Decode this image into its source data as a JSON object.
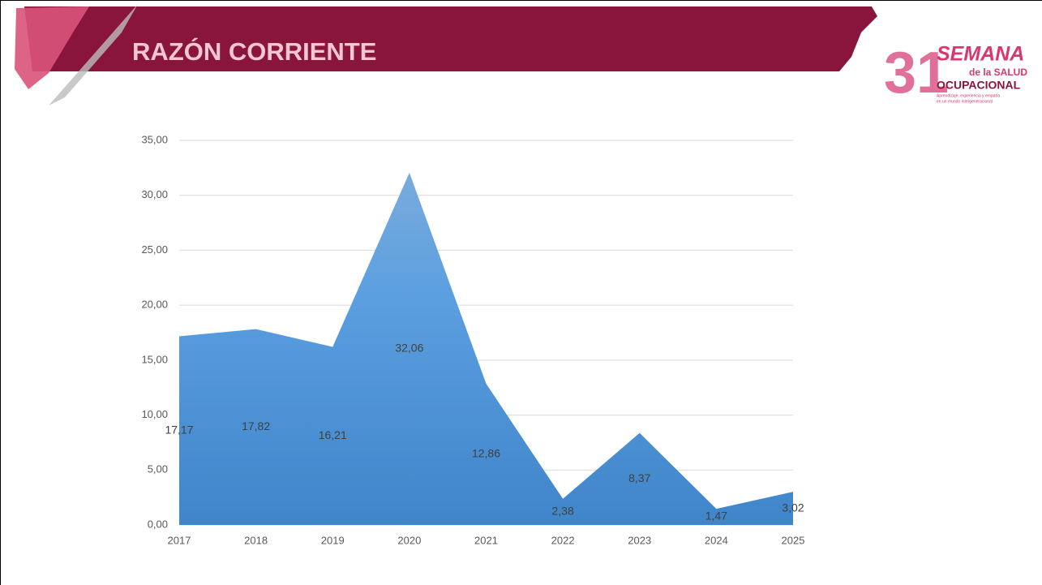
{
  "header": {
    "title": "RAZÓN CORRIENTE"
  },
  "logo": {
    "number": "31",
    "line1": "SEMANA",
    "line2": "de la SALUD",
    "line3": "OCUPACIONAL",
    "tagline1": "Aprendizaje, experiencia y empatía",
    "tagline2": "en un mundo intergeneracional"
  },
  "chart_data": {
    "type": "area",
    "categories": [
      "2017",
      "2018",
      "2019",
      "2020",
      "2021",
      "2022",
      "2023",
      "2024",
      "2025"
    ],
    "values": [
      17.17,
      17.82,
      16.21,
      32.06,
      12.86,
      2.38,
      8.37,
      1.47,
      3.02
    ],
    "value_labels": [
      "17,17",
      "17,82",
      "16,21",
      "32,06",
      "12,86",
      "2,38",
      "8,37",
      "1,47",
      "3,02"
    ],
    "color": "#4a8fd4",
    "ylim": [
      0,
      35
    ],
    "yticks": [
      {
        "value": 0,
        "label": "0,00"
      },
      {
        "value": 5,
        "label": "5,00"
      },
      {
        "value": 10,
        "label": "10,00"
      },
      {
        "value": 15,
        "label": "15,00"
      },
      {
        "value": 20,
        "label": "20,00"
      },
      {
        "value": 25,
        "label": "25,00"
      },
      {
        "value": 30,
        "label": "30,00"
      },
      {
        "value": 35,
        "label": "35,00"
      }
    ],
    "grid": true
  }
}
